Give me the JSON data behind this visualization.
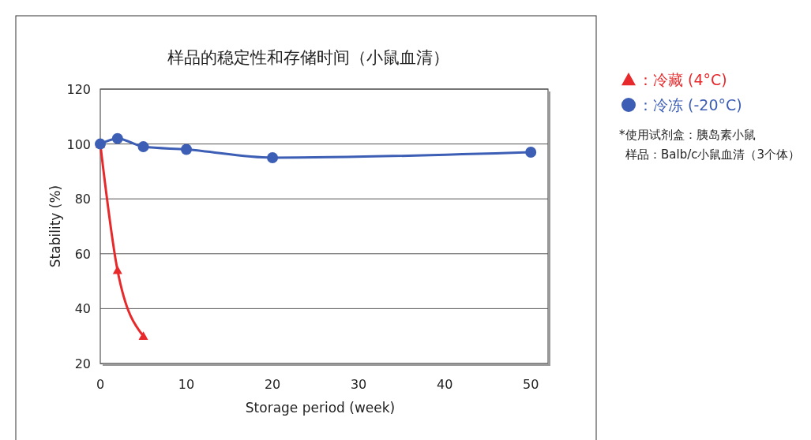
{
  "chart_data": {
    "type": "line",
    "title": "样品的稳定性和存储时间（小鼠血清）",
    "xlabel": "Storage period (week)",
    "ylabel": "Stability (%)",
    "xlim": [
      0,
      52
    ],
    "xticks": [
      0,
      10,
      20,
      30,
      40,
      50
    ],
    "ylim": [
      20,
      120
    ],
    "yticks": [
      20,
      40,
      60,
      80,
      100,
      120
    ],
    "grid": "y",
    "legend": "top right",
    "series": [
      {
        "name": "：冷藏 (4°C)",
        "color": "#e8292b",
        "marker": "triangle",
        "x": [
          0,
          2,
          5
        ],
        "values": [
          100,
          54,
          30
        ]
      },
      {
        "name": "：冷冻 (-20°C)",
        "color": "#3d5eb5",
        "marker": "circle",
        "x": [
          0,
          2,
          5,
          10,
          20,
          50
        ],
        "values": [
          100,
          102,
          99,
          98,
          95,
          97
        ]
      }
    ],
    "annotations": [
      "*使用试剂盒：胰岛素小鼠",
      "样品：Balb/c小鼠血清（3个体）"
    ]
  }
}
